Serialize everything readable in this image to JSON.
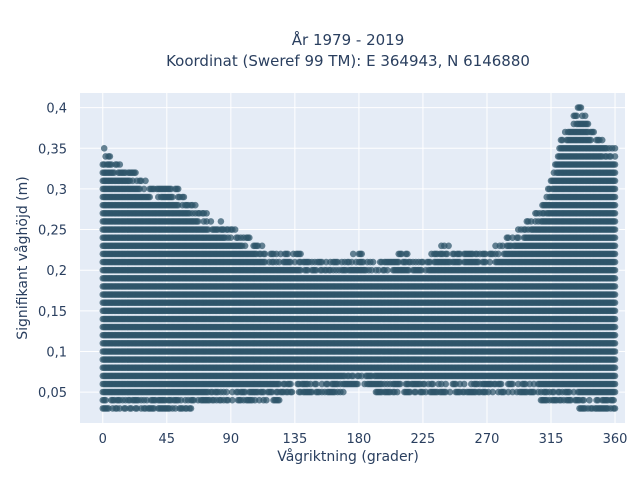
{
  "chart_data": {
    "type": "scatter",
    "title_line1": "År 1979 - 2019",
    "title_line2": "Koordinat (Sweref 99 TM): E 364943, N 6146880",
    "xlabel": "Vågriktning (grader)",
    "ylabel": "Signifikant våghöjd (m)",
    "xlim": [
      -16,
      367
    ],
    "ylim": [
      0.012,
      0.418
    ],
    "x_ticks": [
      0,
      45,
      90,
      135,
      180,
      225,
      270,
      315,
      360
    ],
    "y_ticks": [
      0.05,
      0.1,
      0.15,
      0.2,
      0.25,
      0.3,
      0.35,
      0.4
    ],
    "y_tick_labels": [
      "0,05",
      "0,1",
      "0,15",
      "0,2",
      "0,25",
      "0,3",
      "0,35",
      "0,4"
    ],
    "marker_color": "#2e5469",
    "background": "#e5ecf6",
    "grid": true,
    "y_resolution": 0.01,
    "x_resolution": 1,
    "envelope": {
      "x": [
        0,
        10,
        20,
        30,
        40,
        50,
        60,
        70,
        80,
        90,
        100,
        110,
        120,
        135,
        150,
        165,
        180,
        195,
        210,
        225,
        240,
        255,
        270,
        285,
        300,
        310,
        315,
        320,
        325,
        330,
        335,
        340,
        345,
        350,
        355,
        360
      ],
      "y_min": [
        0.03,
        0.03,
        0.03,
        0.03,
        0.03,
        0.03,
        0.03,
        0.04,
        0.04,
        0.04,
        0.04,
        0.04,
        0.04,
        0.05,
        0.05,
        0.05,
        0.06,
        0.05,
        0.05,
        0.05,
        0.05,
        0.05,
        0.05,
        0.05,
        0.05,
        0.04,
        0.04,
        0.04,
        0.04,
        0.04,
        0.03,
        0.03,
        0.03,
        0.03,
        0.03,
        0.03
      ],
      "y_max": [
        0.35,
        0.33,
        0.32,
        0.31,
        0.3,
        0.3,
        0.29,
        0.27,
        0.26,
        0.25,
        0.24,
        0.23,
        0.22,
        0.22,
        0.21,
        0.21,
        0.22,
        0.21,
        0.22,
        0.21,
        0.23,
        0.22,
        0.22,
        0.24,
        0.26,
        0.28,
        0.31,
        0.35,
        0.37,
        0.39,
        0.4,
        0.39,
        0.37,
        0.36,
        0.35,
        0.35
      ]
    }
  }
}
